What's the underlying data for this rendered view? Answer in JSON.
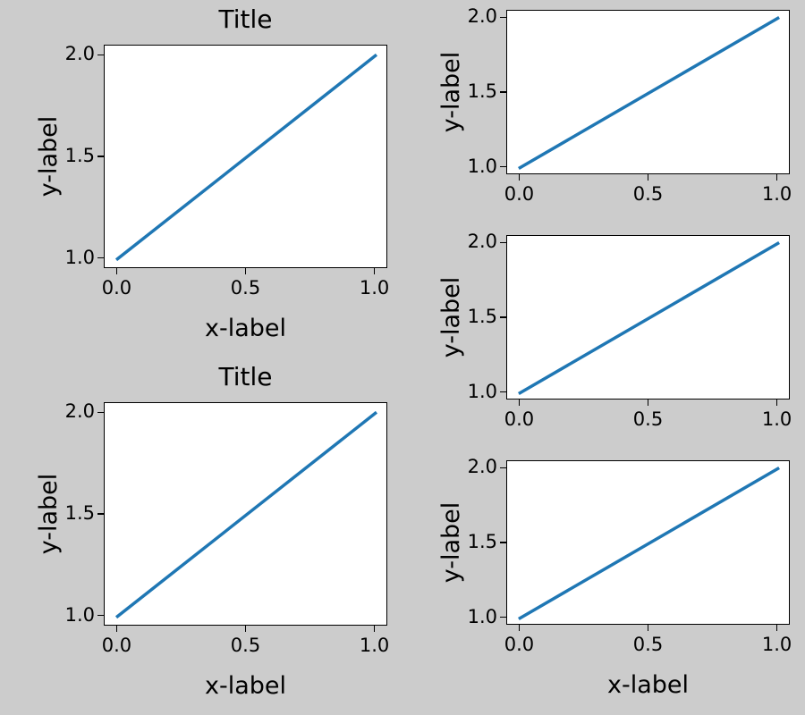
{
  "figure": {
    "background": "#cccccc",
    "line_color": "#1f77b4"
  },
  "chart_data": [
    {
      "type": "line",
      "title": "Title",
      "xlabel": "x-label",
      "ylabel": "y-label",
      "x": [
        0,
        1
      ],
      "y": [
        1,
        2
      ],
      "xticks": [
        "0.0",
        "0.5",
        "1.0"
      ],
      "yticks": [
        "1.0",
        "1.5",
        "2.0"
      ],
      "xlim": [
        -0.05,
        1.05
      ],
      "ylim": [
        0.95,
        2.05
      ],
      "grid": false,
      "position": "top-left"
    },
    {
      "type": "line",
      "title": "",
      "xlabel": "",
      "ylabel": "y-label",
      "x": [
        0,
        1
      ],
      "y": [
        1,
        2
      ],
      "xticks": [
        "0.0",
        "0.5",
        "1.0"
      ],
      "yticks": [
        "1.0",
        "1.5",
        "2.0"
      ],
      "xlim": [
        -0.05,
        1.05
      ],
      "ylim": [
        0.95,
        2.05
      ],
      "grid": false,
      "position": "top-right"
    },
    {
      "type": "line",
      "title": "",
      "xlabel": "",
      "ylabel": "y-label",
      "x": [
        0,
        1
      ],
      "y": [
        1,
        2
      ],
      "xticks": [
        "0.0",
        "0.5",
        "1.0"
      ],
      "yticks": [
        "1.0",
        "1.5",
        "2.0"
      ],
      "xlim": [
        -0.05,
        1.05
      ],
      "ylim": [
        0.95,
        2.05
      ],
      "grid": false,
      "position": "middle-right"
    },
    {
      "type": "line",
      "title": "Title",
      "xlabel": "x-label",
      "ylabel": "y-label",
      "x": [
        0,
        1
      ],
      "y": [
        1,
        2
      ],
      "xticks": [
        "0.0",
        "0.5",
        "1.0"
      ],
      "yticks": [
        "1.0",
        "1.5",
        "2.0"
      ],
      "xlim": [
        -0.05,
        1.05
      ],
      "ylim": [
        0.95,
        2.05
      ],
      "grid": false,
      "position": "bottom-left"
    },
    {
      "type": "line",
      "title": "",
      "xlabel": "x-label",
      "ylabel": "y-label",
      "x": [
        0,
        1
      ],
      "y": [
        1,
        2
      ],
      "xticks": [
        "0.0",
        "0.5",
        "1.0"
      ],
      "yticks": [
        "1.0",
        "1.5",
        "2.0"
      ],
      "xlim": [
        -0.05,
        1.05
      ],
      "ylim": [
        0.95,
        2.05
      ],
      "grid": false,
      "position": "bottom-right"
    }
  ]
}
